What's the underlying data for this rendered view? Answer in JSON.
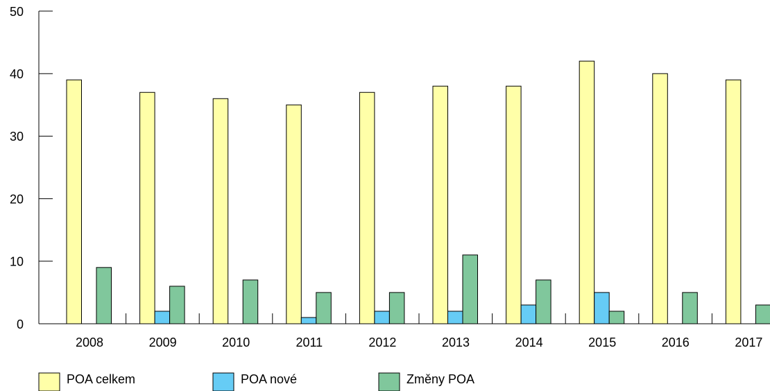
{
  "chart_data": {
    "type": "bar",
    "categories": [
      "2008",
      "2009",
      "2010",
      "2011",
      "2012",
      "2013",
      "2014",
      "2015",
      "2016",
      "2017"
    ],
    "series": [
      {
        "name": "POA celkem",
        "color": "#ffffa8",
        "values": [
          39,
          37,
          36,
          35,
          37,
          38,
          38,
          42,
          40,
          39
        ]
      },
      {
        "name": "POA nové",
        "color": "#66ccf5",
        "values": [
          0,
          2,
          0,
          1,
          2,
          2,
          3,
          5,
          0,
          0
        ]
      },
      {
        "name": "Změny POA",
        "color": "#80c79c",
        "values": [
          9,
          6,
          7,
          5,
          5,
          11,
          7,
          2,
          5,
          3
        ]
      }
    ],
    "ylim": [
      0,
      50
    ],
    "yticks": [
      0,
      10,
      20,
      30,
      40,
      50
    ],
    "grid": false,
    "legend_position": "bottom-left"
  }
}
